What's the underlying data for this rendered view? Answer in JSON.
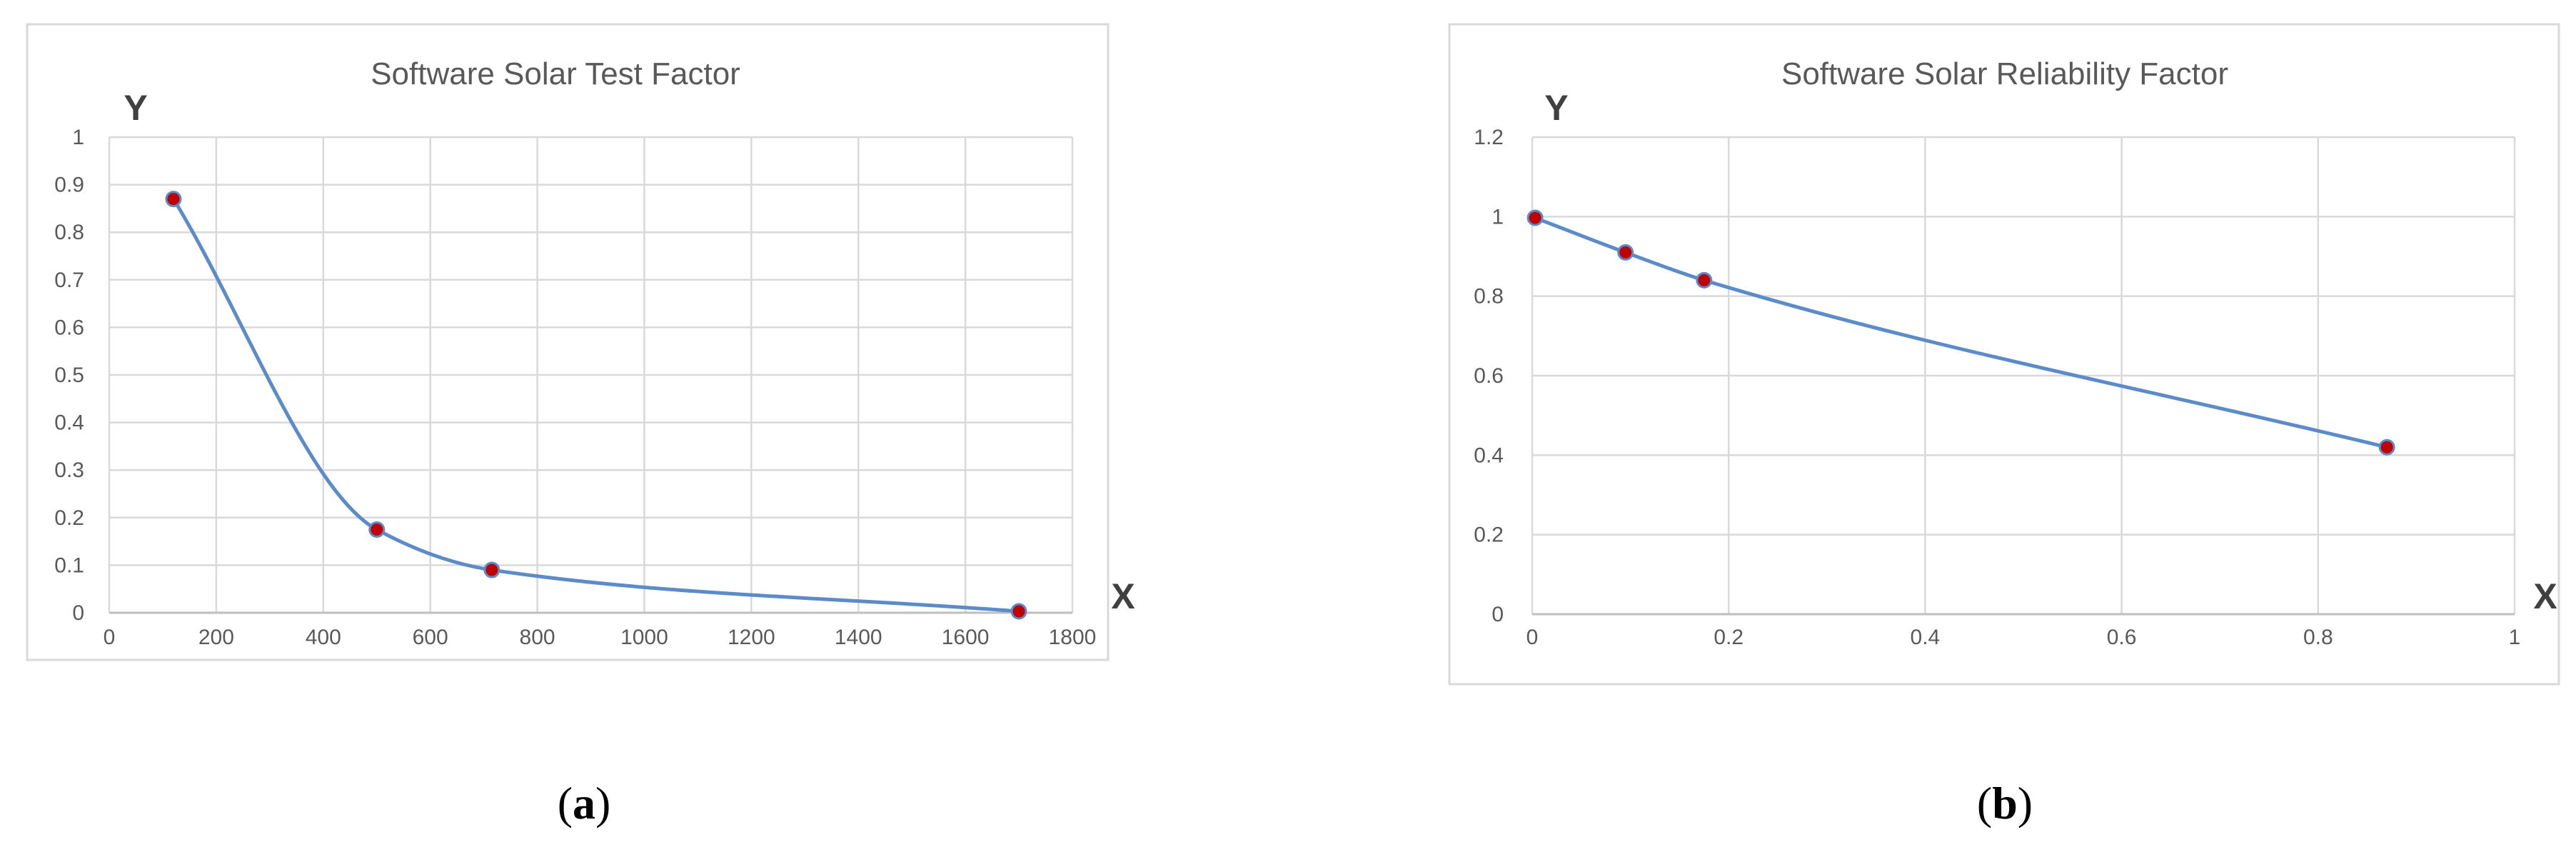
{
  "chart_data": [
    {
      "type": "line",
      "title": "Software Solar Test Factor",
      "xlabel": "X",
      "ylabel": "Y",
      "xlim": [
        0,
        1800
      ],
      "ylim": [
        0,
        1
      ],
      "xticks": [
        0,
        200,
        400,
        600,
        800,
        1000,
        1200,
        1400,
        1600,
        1800
      ],
      "yticks": [
        0,
        0.1,
        0.2,
        0.3,
        0.4,
        0.5,
        0.6,
        0.7,
        0.8,
        0.9,
        1
      ],
      "grid": true,
      "smooth": true,
      "series": [
        {
          "x": [
            120,
            500,
            715,
            1700
          ],
          "y": [
            0.87,
            0.175,
            0.09,
            0.003
          ]
        }
      ],
      "colors": {
        "line": "#5b8bc9",
        "marker_fill": "#c00000",
        "marker_edge": "#5b8bc9",
        "grid": "#d9d9d9",
        "frame": "#d9d9d9"
      },
      "caption": {
        "open": "(",
        "letter": "a",
        "close": ")"
      }
    },
    {
      "type": "line",
      "title": "Software Solar Reliability Factor",
      "xlabel": "X",
      "ylabel": "Y",
      "xlim": [
        0,
        1
      ],
      "ylim": [
        0,
        1.2
      ],
      "xticks": [
        0,
        0.2,
        0.4,
        0.6,
        0.8,
        1
      ],
      "yticks": [
        0,
        0.2,
        0.4,
        0.6,
        0.8,
        1,
        1.2
      ],
      "grid": true,
      "smooth": true,
      "series": [
        {
          "x": [
            0.003,
            0.095,
            0.175,
            0.87
          ],
          "y": [
            0.997,
            0.91,
            0.84,
            0.42
          ]
        }
      ],
      "colors": {
        "line": "#5b8bc9",
        "marker_fill": "#c00000",
        "marker_edge": "#5b8bc9",
        "grid": "#d9d9d9",
        "frame": "#d9d9d9"
      },
      "caption": {
        "open": "(",
        "letter": "b",
        "close": ")"
      }
    }
  ]
}
